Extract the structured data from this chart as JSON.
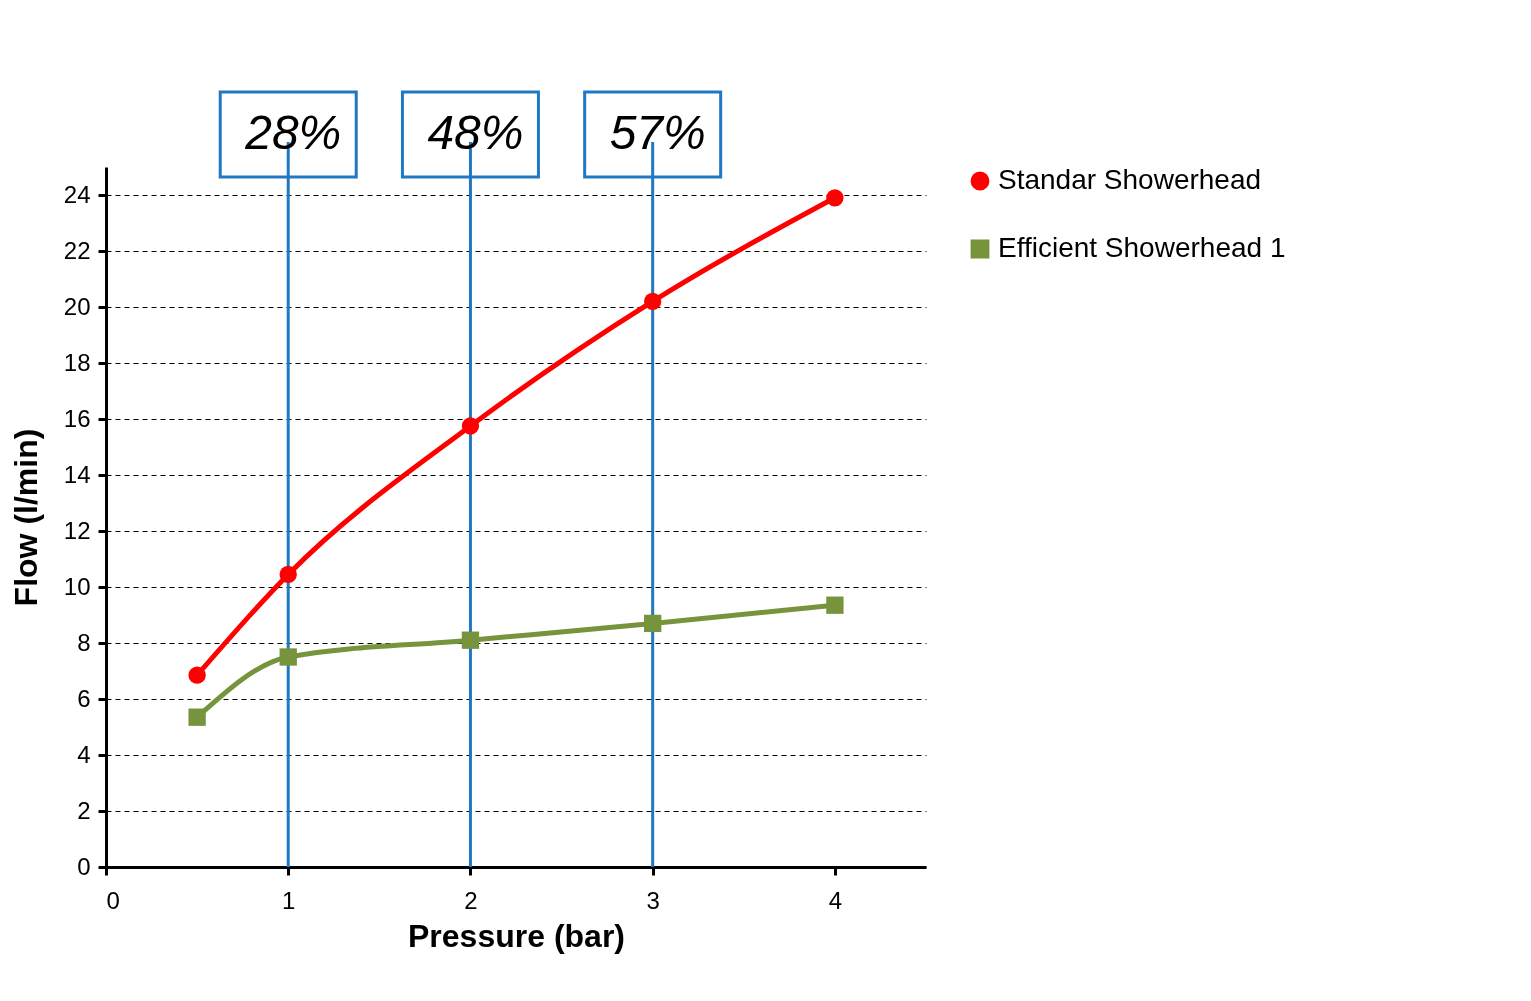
{
  "chart_data": {
    "type": "line",
    "xlabel": "Pressure (bar)",
    "ylabel": "Flow (l/min)",
    "xlim": [
      0,
      4.5
    ],
    "xticks": [
      0,
      1,
      2,
      3,
      4
    ],
    "ylim": [
      0,
      25
    ],
    "yticks": [
      0,
      2,
      4,
      6,
      8,
      10,
      12,
      14,
      16,
      18,
      20,
      22,
      24
    ],
    "grid": "y",
    "legend": "right",
    "line_style": "solid",
    "series": [
      {
        "name": "Standar Showerhead",
        "color": "#ff0000",
        "marker": "circle",
        "x": [
          0.5,
          1,
          2,
          3,
          4
        ],
        "values": [
          6.85,
          10.45,
          15.75,
          20.2,
          23.9
        ]
      },
      {
        "name": "Efficient Showerhead 1",
        "color": "#77933c",
        "marker": "square",
        "x": [
          0.5,
          1,
          2,
          3,
          4
        ],
        "values": [
          5.35,
          7.5,
          8.1,
          8.7,
          9.35
        ]
      }
    ],
    "ref_lines": [
      {
        "axis": "x",
        "value": 1,
        "color": "#1f78c1"
      },
      {
        "axis": "x",
        "value": 2,
        "color": "#1f78c1"
      },
      {
        "axis": "x",
        "value": 3,
        "color": "#1f78c1"
      }
    ],
    "annotations": [
      "28%",
      "48%",
      "57%"
    ]
  }
}
